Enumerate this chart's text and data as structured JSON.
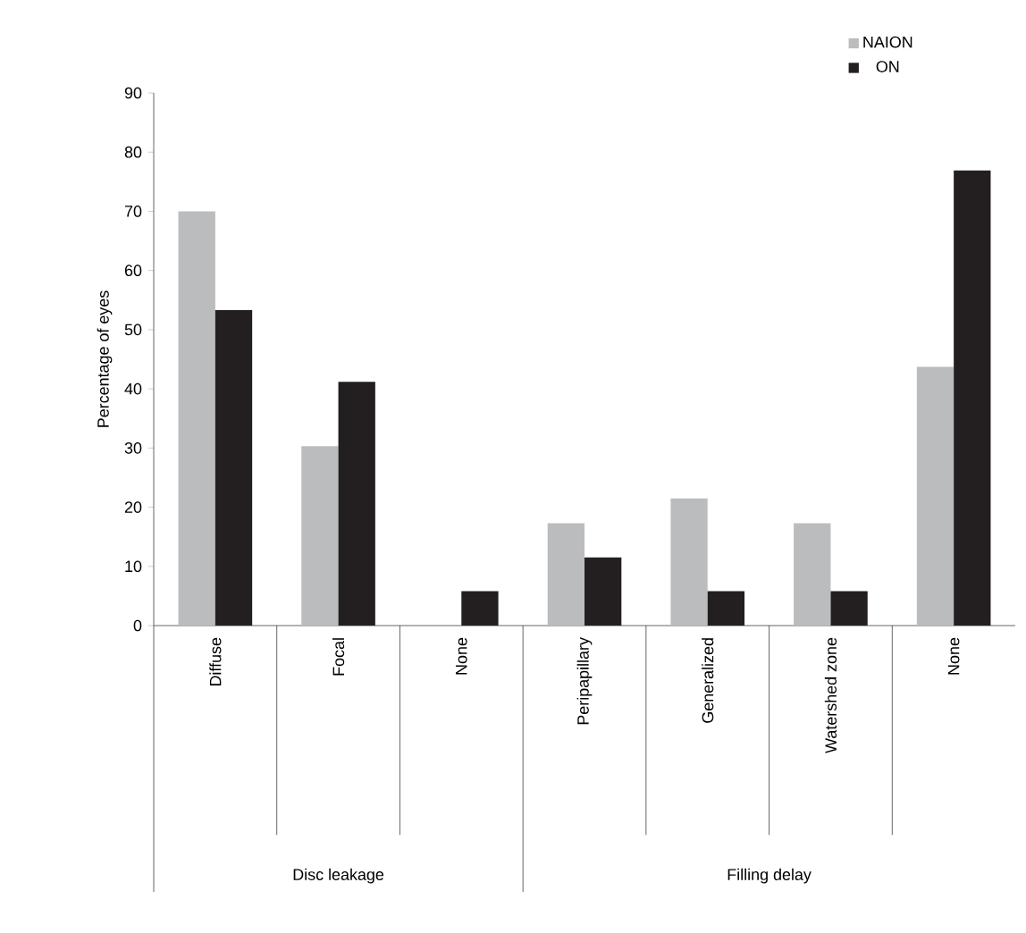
{
  "chart_data": {
    "type": "bar",
    "ylabel": "Percentage of eyes",
    "categories": [
      "Diffuse",
      "Focal",
      "None",
      "Peripapillary",
      "Generalized",
      "Watershed zone",
      "None"
    ],
    "series": [
      {
        "name": "NAION",
        "color": "#bbbcbe",
        "values": [
          70.0,
          30.3,
          0,
          17.3,
          21.5,
          17.3,
          43.7
        ]
      },
      {
        "name": "ON",
        "color": "#231f20",
        "values": [
          53.3,
          41.2,
          5.8,
          11.5,
          5.8,
          5.8,
          76.9
        ]
      }
    ],
    "ylim": [
      0,
      90
    ],
    "yticks": [
      0,
      10,
      20,
      30,
      40,
      50,
      60,
      70,
      80,
      90
    ],
    "annotations": [
      "Disc leakage",
      "Filling delay"
    ],
    "grid": false,
    "legend": "top right"
  }
}
